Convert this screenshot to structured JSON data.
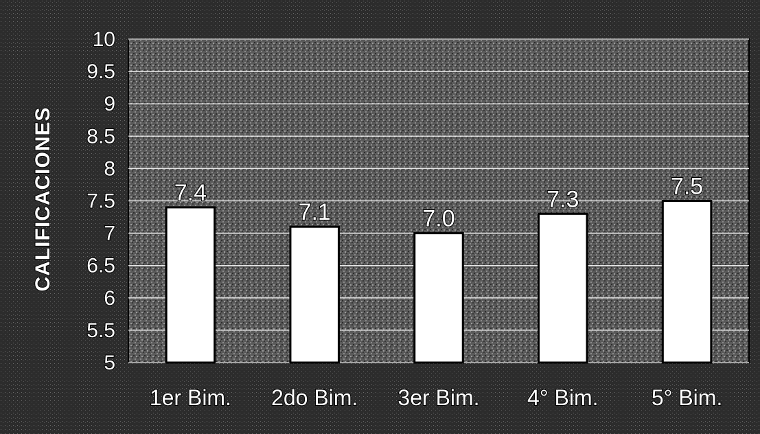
{
  "chart_data": {
    "type": "bar",
    "categories": [
      "1er Bim.",
      "2do Bim.",
      "3er Bim.",
      "4° Bim.",
      "5° Bim."
    ],
    "values": [
      7.4,
      7.1,
      7.0,
      7.3,
      7.5
    ],
    "data_labels": [
      "7.4",
      "7.1",
      "7.0",
      "7.3",
      "7.5"
    ],
    "ylabel": "CALIFICACIONES",
    "xlabel": "",
    "ylim": [
      5,
      10
    ],
    "yticks": [
      5,
      5.5,
      6,
      6.5,
      7,
      7.5,
      8,
      8.5,
      9,
      9.5,
      10
    ],
    "ytick_labels": [
      "5",
      "5.5",
      "6",
      "6.5",
      "7",
      "7.5",
      "8",
      "8.5",
      "9",
      "9.5",
      "10"
    ],
    "grid": true,
    "legend": "none",
    "colors": {
      "background": "#2a2a2a",
      "plot_area": "#6e6e6e",
      "bar_fill": "#ffffff",
      "bar_stroke": "#000000",
      "gridline": "#ffffff",
      "text": "#ffffff"
    }
  }
}
